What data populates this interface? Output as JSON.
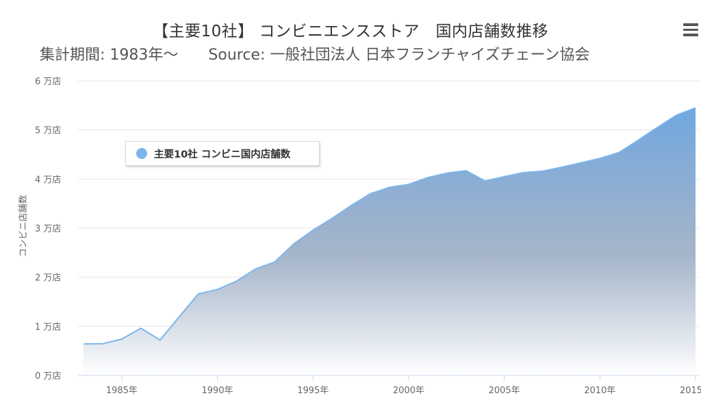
{
  "title": "【主要10社】 コンビニエンスストア　国内店舗数推移",
  "subtitle": "集計期間: 1983年～　　Source: 一般社団法人 日本フランチャイズチェーン協会",
  "menu_icon": "hamburger-menu-icon",
  "colors": {
    "series": "#7cb5ec",
    "grid": "#e6e6e6",
    "axis_text": "#666666"
  },
  "chart_data": {
    "type": "area",
    "title": "【主要10社】 コンビニエンスストア　国内店舗数推移",
    "subtitle": "集計期間: 1983年～　　Source: 一般社団法人 日本フランチャイズチェーン協会",
    "ylabel": "コンビニ店舗数",
    "xlabel": "",
    "ylim": [
      0,
      60000
    ],
    "xlim": [
      1983,
      2015
    ],
    "yticks": [
      0,
      10000,
      20000,
      30000,
      40000,
      50000,
      60000
    ],
    "ytick_labels": [
      "0 万店",
      "1 万店",
      "2 万店",
      "3 万店",
      "4 万店",
      "5 万店",
      "6 万店"
    ],
    "xticks": [
      1985,
      1990,
      1995,
      2000,
      2005,
      2010,
      2015
    ],
    "xtick_labels": [
      "1985年",
      "1990年",
      "1995年",
      "2000年",
      "2005年",
      "2010年",
      "2015年"
    ],
    "grid": true,
    "legend_position": "top-left",
    "series": [
      {
        "name": "主要10社 コンビニ国内店舗数",
        "color": "#7cb5ec",
        "x": [
          1983,
          1984,
          1985,
          1986,
          1987,
          1988,
          1989,
          1990,
          1991,
          1992,
          1993,
          1994,
          1995,
          1996,
          1997,
          1998,
          1999,
          2000,
          2001,
          2002,
          2003,
          2004,
          2005,
          2006,
          2007,
          2008,
          2009,
          2010,
          2011,
          2012,
          2013,
          2014,
          2015
        ],
        "values": [
          6400,
          6450,
          7400,
          9600,
          7200,
          11900,
          16600,
          17500,
          19200,
          21700,
          23100,
          26800,
          29600,
          32000,
          34600,
          37000,
          38300,
          38900,
          40300,
          41200,
          41700,
          39600,
          40500,
          41300,
          41600,
          42400,
          43300,
          44200,
          45400,
          47900,
          50500,
          53000,
          54500
        ]
      }
    ]
  }
}
